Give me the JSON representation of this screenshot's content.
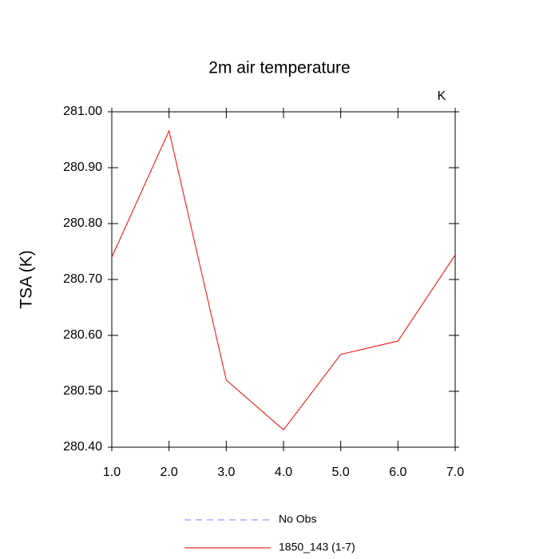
{
  "chart_data": {
    "type": "line",
    "title": "2m air temperature",
    "units": "K",
    "y_label": "TSA  (K)",
    "x": [
      1,
      2,
      3,
      4,
      5,
      6,
      7
    ],
    "series": [
      {
        "name": "No Obs",
        "color": "#7f7fff",
        "dashed": true,
        "values": [
          null,
          null,
          null,
          null,
          null,
          null,
          null
        ]
      },
      {
        "name": "1850_143 (1-7)",
        "color": "#ff0000",
        "dashed": false,
        "values": [
          280.74,
          280.966,
          280.52,
          280.431,
          280.566,
          280.59,
          280.744
        ]
      }
    ],
    "xlim": [
      1,
      7
    ],
    "xticks": [
      {
        "value": 1,
        "label": "1.0"
      },
      {
        "value": 2,
        "label": "2.0"
      },
      {
        "value": 3,
        "label": "3.0"
      },
      {
        "value": 4,
        "label": "4.0"
      },
      {
        "value": 5,
        "label": "5.0"
      },
      {
        "value": 6,
        "label": "6.0"
      },
      {
        "value": 7,
        "label": "7.0"
      }
    ],
    "ylim": [
      280.4,
      281.0
    ],
    "yticks": [
      {
        "value": 280.4,
        "label": "280.40"
      },
      {
        "value": 280.5,
        "label": "280.50"
      },
      {
        "value": 280.6,
        "label": "280.60"
      },
      {
        "value": 280.7,
        "label": "280.70"
      },
      {
        "value": 280.8,
        "label": "280.80"
      },
      {
        "value": 280.9,
        "label": "280.90"
      },
      {
        "value": 281.0,
        "label": "281.00"
      }
    ],
    "grid": false,
    "legend": "bottom"
  }
}
